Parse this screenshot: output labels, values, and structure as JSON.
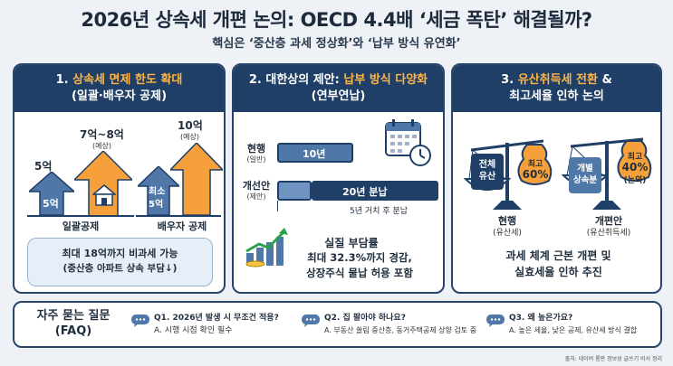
{
  "header": {
    "title": "2026년 상속세 개편 논의: OECD 4.4배 ‘세금 폭탄’ 해결될까?",
    "subtitle": "핵심은 ‘중산층 과세 정상화’와 ‘납부 방식 유연화’"
  },
  "panel1": {
    "title_prefix": "1. ",
    "title_highlight": "상속세 면제 한도 확대",
    "title_line2": "(일괄·배우자 공제)",
    "v5": "5억",
    "v78": "7억~8억",
    "v78_note": "(예상)",
    "v5_inner": "5억",
    "v10": "10억",
    "v10_note": "(예상)",
    "min_label": "최소",
    "min_value": "5억",
    "label_lump": "일괄공제",
    "label_spouse": "배우자 공제",
    "callout_line1": "최대 18억까지 비과세 가능",
    "callout_line2": "(중산층 아파트 상속 부담↓)"
  },
  "panel2": {
    "title_prefix": "2. 대한상의 제안: ",
    "title_highlight": "납부 방식 다양화",
    "title_line2": "(연부연납)",
    "current_label": "현행",
    "current_sub": "(일반)",
    "current_bar": "10년",
    "proposal_label": "개선안",
    "proposal_sub": "(제안)",
    "proposal_bar": "20년 분납",
    "bar_note": "5년 거치 후 분납",
    "effect_title": "실질 부담률",
    "effect_line1": "최대 32.3%까지 경감,",
    "effect_line2": "상장주식 물납 허용 포함"
  },
  "panel3": {
    "title_prefix": "3. ",
    "title_highlight": "유산취득세 전환",
    "title_amp": " &",
    "title_line2": "최고세율 인하 논의",
    "left_pan": "전체\n유산",
    "left_bag_top": "최고",
    "left_bag_val": "60%",
    "left_label": "현행",
    "left_sub": "(유산세)",
    "right_pan": "개별\n상속분",
    "right_bag_top": "최고",
    "right_bag_val": "40%",
    "right_bag_sub": "(논의)",
    "right_label": "개편안",
    "right_sub": "(유산취득세)",
    "bottom_line1": "과세 체계 근본 개편 및",
    "bottom_line2": "실효세율 인하 추진"
  },
  "faq": {
    "title_line1": "자주 묻는 질문",
    "title_line2": "(FAQ)",
    "items": [
      {
        "q": "Q1. 2026년 발생 시 무조건 적용?",
        "a": "A. 시행 시점 확인 필수"
      },
      {
        "q": "Q2. 집 팔아야 하나요?",
        "a": "A. 부동산 쏠림 중산층, 동거주택공제 상향 검토 중"
      },
      {
        "q": "Q3. 왜 높은가요?",
        "a": "A. 높은 세율, 낮은 공제, 유산세 방식 결합"
      }
    ]
  },
  "source": "출처: 네이버 롬판 정보성 글쓰기 비서 정리",
  "colors": {
    "navy": "#1f3f66",
    "orange": "#f5a03a",
    "accent": "#ffb545",
    "blue_arrow": "#4f77a8"
  }
}
